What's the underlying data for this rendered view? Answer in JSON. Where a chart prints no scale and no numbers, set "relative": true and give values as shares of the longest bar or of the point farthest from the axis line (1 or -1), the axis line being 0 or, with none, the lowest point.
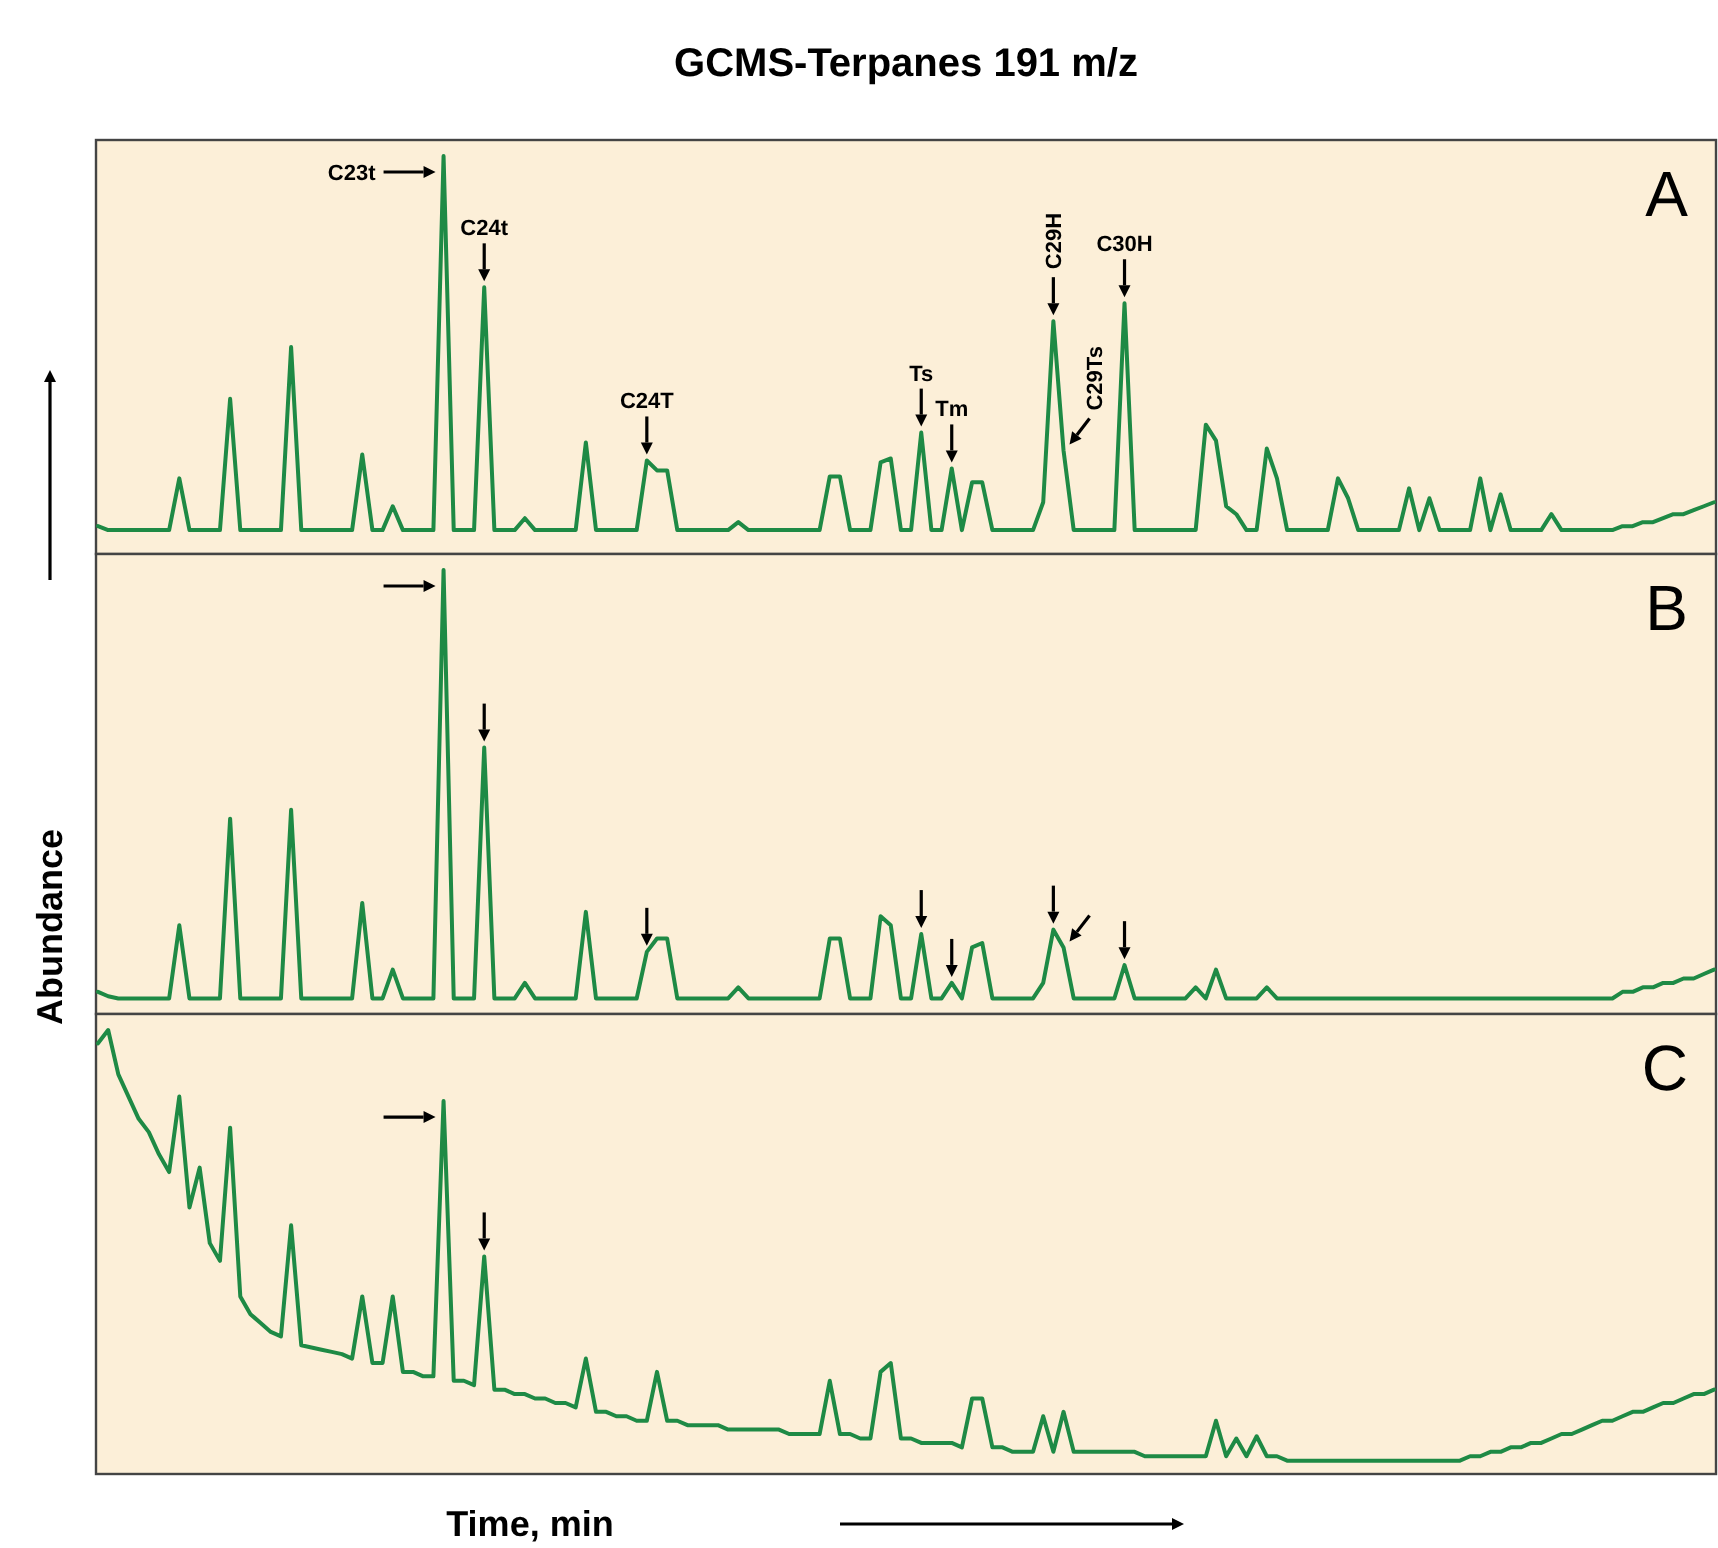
{
  "chart_data": [
    {
      "type": "line",
      "title": "GCMS-Terpanes 191 m/z",
      "relative": true,
      "categories": [
        null,
        null,
        null,
        null,
        null,
        null,
        null,
        null,
        null,
        null,
        null,
        null,
        null,
        null,
        null,
        null,
        null,
        null,
        null,
        null,
        null,
        null,
        null,
        null,
        null,
        null,
        null,
        null,
        null,
        null,
        null,
        null,
        null,
        null,
        null,
        null,
        null,
        null,
        null,
        null,
        null,
        null,
        null,
        null,
        null,
        null,
        null,
        null,
        null,
        null,
        null,
        null,
        null,
        null,
        null,
        null,
        null,
        null,
        null,
        null,
        null,
        null,
        null,
        null,
        null,
        null,
        null,
        null,
        null,
        null,
        null,
        null,
        null,
        null,
        null,
        null,
        null,
        null,
        null,
        null,
        null,
        null,
        null,
        null,
        null,
        null,
        null,
        null,
        null,
        null,
        null,
        null,
        null,
        null,
        null,
        null,
        null,
        null,
        null,
        null,
        null,
        null,
        null,
        null,
        null,
        null,
        null,
        null,
        null,
        null,
        null,
        null,
        null,
        null,
        null,
        null,
        null,
        null,
        null,
        null,
        null,
        null,
        null,
        null,
        null,
        null,
        null,
        null,
        null,
        null,
        null,
        null,
        null,
        null,
        null,
        null,
        null,
        null,
        null,
        null,
        null,
        null,
        null,
        null,
        null,
        null,
        null,
        null,
        null,
        null,
        null,
        null,
        null,
        null,
        null,
        null,
        null,
        null,
        null,
        null
      ],
      "series": [
        {
          "color": "#1e8a45",
          "values": [
            0.07,
            0.06,
            0.06,
            0.06,
            0.06,
            0.06,
            0.06,
            0.06,
            0.19,
            0.06,
            0.06,
            0.06,
            0.06,
            0.39,
            0.06,
            0.06,
            0.06,
            0.06,
            0.06,
            0.52,
            0.06,
            0.06,
            0.06,
            0.06,
            0.06,
            0.06,
            0.25,
            0.06,
            0.06,
            0.12,
            0.06,
            0.06,
            0.06,
            0.06,
            1,
            0.06,
            0.06,
            0.06,
            0.67,
            0.06,
            0.06,
            0.06,
            0.09,
            0.06,
            0.06,
            0.06,
            0.06,
            0.06,
            0.28,
            0.06,
            0.06,
            0.06,
            0.06,
            0.06,
            0.235,
            0.21,
            0.21,
            0.06,
            0.06,
            0.06,
            0.06,
            0.06,
            0.06,
            0.08,
            0.06,
            0.06,
            0.06,
            0.06,
            0.06,
            0.06,
            0.06,
            0.06,
            0.195,
            0.195,
            0.06,
            0.06,
            0.06,
            0.23,
            0.24,
            0.06,
            0.06,
            0.305,
            0.06,
            0.06,
            0.215,
            0.06,
            0.18,
            0.18,
            0.06,
            0.06,
            0.06,
            0.06,
            0.06,
            0.13,
            0.585,
            0.26,
            0.06,
            0.06,
            0.06,
            0.06,
            0.06,
            0.63,
            0.06,
            0.06,
            0.06,
            0.06,
            0.06,
            0.06,
            0.06,
            0.325,
            0.285,
            0.12,
            0.1,
            0.06,
            0.06,
            0.265,
            0.19,
            0.06,
            0.06,
            0.06,
            0.06,
            0.06,
            0.19,
            0.14,
            0.06,
            0.06,
            0.06,
            0.06,
            0.06,
            0.165,
            0.06,
            0.14,
            0.06,
            0.06,
            0.06,
            0.06,
            0.19,
            0.06,
            0.15,
            0.06,
            0.06,
            0.06,
            0.06,
            0.1,
            0.06,
            0.06,
            0.06,
            0.06,
            0.06,
            0.06,
            0.07,
            0.07,
            0.08,
            0.08,
            0.09,
            0.1,
            0.1,
            0.11,
            0.12,
            0.13
          ]
        }
      ],
      "annotations": [
        "A",
        "C23t",
        "C24t",
        "C24T",
        "Ts",
        "Tm",
        "C29H",
        "C29Ts",
        "C30H"
      ]
    },
    {
      "type": "line",
      "ylabel": "Abundance",
      "relative": true,
      "categories": [
        null,
        null,
        null,
        null,
        null,
        null,
        null,
        null,
        null,
        null,
        null,
        null,
        null,
        null,
        null,
        null,
        null,
        null,
        null,
        null,
        null,
        null,
        null,
        null,
        null,
        null,
        null,
        null,
        null,
        null,
        null,
        null,
        null,
        null,
        null,
        null,
        null,
        null,
        null,
        null,
        null,
        null,
        null,
        null,
        null,
        null,
        null,
        null,
        null,
        null,
        null,
        null,
        null,
        null,
        null,
        null,
        null,
        null,
        null,
        null,
        null,
        null,
        null,
        null,
        null,
        null,
        null,
        null,
        null,
        null,
        null,
        null,
        null,
        null,
        null,
        null,
        null,
        null,
        null,
        null,
        null,
        null,
        null,
        null,
        null,
        null,
        null,
        null,
        null,
        null,
        null,
        null,
        null,
        null,
        null,
        null,
        null,
        null,
        null,
        null,
        null,
        null,
        null,
        null,
        null,
        null,
        null,
        null,
        null,
        null,
        null,
        null,
        null,
        null,
        null,
        null,
        null,
        null,
        null,
        null,
        null,
        null,
        null,
        null,
        null,
        null,
        null,
        null,
        null,
        null,
        null,
        null,
        null,
        null,
        null,
        null,
        null,
        null,
        null,
        null,
        null,
        null,
        null,
        null,
        null,
        null,
        null,
        null,
        null,
        null,
        null,
        null,
        null,
        null,
        null,
        null,
        null,
        null,
        null,
        null
      ],
      "series": [
        {
          "color": "#1e8a45",
          "values": [
            0.05,
            0.04,
            0.035,
            0.035,
            0.035,
            0.035,
            0.035,
            0.035,
            0.2,
            0.035,
            0.035,
            0.035,
            0.035,
            0.44,
            0.035,
            0.035,
            0.035,
            0.035,
            0.035,
            0.46,
            0.035,
            0.035,
            0.035,
            0.035,
            0.035,
            0.035,
            0.25,
            0.035,
            0.035,
            0.1,
            0.035,
            0.035,
            0.035,
            0.035,
            1,
            0.035,
            0.035,
            0.035,
            0.6,
            0.035,
            0.035,
            0.035,
            0.07,
            0.035,
            0.035,
            0.035,
            0.035,
            0.035,
            0.23,
            0.035,
            0.035,
            0.035,
            0.035,
            0.035,
            0.14,
            0.17,
            0.17,
            0.035,
            0.035,
            0.035,
            0.035,
            0.035,
            0.035,
            0.06,
            0.035,
            0.035,
            0.035,
            0.035,
            0.035,
            0.035,
            0.035,
            0.035,
            0.17,
            0.17,
            0.035,
            0.035,
            0.035,
            0.22,
            0.2,
            0.035,
            0.035,
            0.18,
            0.035,
            0.035,
            0.07,
            0.035,
            0.15,
            0.16,
            0.035,
            0.035,
            0.035,
            0.035,
            0.035,
            0.07,
            0.19,
            0.15,
            0.035,
            0.035,
            0.035,
            0.035,
            0.035,
            0.11,
            0.035,
            0.035,
            0.035,
            0.035,
            0.035,
            0.035,
            0.06,
            0.035,
            0.1,
            0.035,
            0.035,
            0.035,
            0.035,
            0.06,
            0.035,
            0.035,
            0.035,
            0.035,
            0.035,
            0.035,
            0.035,
            0.035,
            0.035,
            0.035,
            0.035,
            0.035,
            0.035,
            0.035,
            0.035,
            0.035,
            0.035,
            0.035,
            0.035,
            0.035,
            0.035,
            0.035,
            0.035,
            0.035,
            0.035,
            0.035,
            0.035,
            0.035,
            0.035,
            0.035,
            0.035,
            0.035,
            0.035,
            0.035,
            0.05,
            0.05,
            0.06,
            0.06,
            0.07,
            0.07,
            0.08,
            0.08,
            0.09,
            0.1
          ]
        }
      ],
      "annotations": [
        "B"
      ]
    },
    {
      "type": "line",
      "xlabel": "Time, min",
      "relative": true,
      "categories": [
        null,
        null,
        null,
        null,
        null,
        null,
        null,
        null,
        null,
        null,
        null,
        null,
        null,
        null,
        null,
        null,
        null,
        null,
        null,
        null,
        null,
        null,
        null,
        null,
        null,
        null,
        null,
        null,
        null,
        null,
        null,
        null,
        null,
        null,
        null,
        null,
        null,
        null,
        null,
        null,
        null,
        null,
        null,
        null,
        null,
        null,
        null,
        null,
        null,
        null,
        null,
        null,
        null,
        null,
        null,
        null,
        null,
        null,
        null,
        null,
        null,
        null,
        null,
        null,
        null,
        null,
        null,
        null,
        null,
        null,
        null,
        null,
        null,
        null,
        null,
        null,
        null,
        null,
        null,
        null,
        null,
        null,
        null,
        null,
        null,
        null,
        null,
        null,
        null,
        null,
        null,
        null,
        null,
        null,
        null,
        null,
        null,
        null,
        null,
        null,
        null,
        null,
        null,
        null,
        null,
        null,
        null,
        null,
        null,
        null,
        null,
        null,
        null,
        null,
        null,
        null,
        null,
        null,
        null,
        null,
        null,
        null,
        null,
        null,
        null,
        null,
        null,
        null,
        null,
        null,
        null,
        null,
        null,
        null,
        null,
        null,
        null,
        null,
        null,
        null,
        null,
        null,
        null,
        null,
        null,
        null,
        null,
        null,
        null,
        null,
        null,
        null,
        null,
        null,
        null,
        null,
        null,
        null,
        null,
        null
      ],
      "series": [
        {
          "color": "#1e8a45",
          "values": [
            0.97,
            1,
            0.9,
            0.85,
            0.8,
            0.77,
            0.72,
            0.68,
            0.85,
            0.6,
            0.69,
            0.52,
            0.48,
            0.78,
            0.4,
            0.36,
            0.34,
            0.32,
            0.31,
            0.56,
            0.29,
            0.285,
            0.28,
            0.275,
            0.27,
            0.26,
            0.4,
            0.25,
            0.25,
            0.4,
            0.23,
            0.23,
            0.22,
            0.22,
            0.84,
            0.21,
            0.21,
            0.2,
            0.49,
            0.19,
            0.19,
            0.18,
            0.18,
            0.17,
            0.17,
            0.16,
            0.16,
            0.15,
            0.26,
            0.14,
            0.14,
            0.13,
            0.13,
            0.12,
            0.12,
            0.23,
            0.12,
            0.12,
            0.11,
            0.11,
            0.11,
            0.11,
            0.1,
            0.1,
            0.1,
            0.1,
            0.1,
            0.1,
            0.09,
            0.09,
            0.09,
            0.09,
            0.21,
            0.09,
            0.09,
            0.08,
            0.08,
            0.23,
            0.25,
            0.08,
            0.08,
            0.07,
            0.07,
            0.07,
            0.07,
            0.06,
            0.17,
            0.17,
            0.06,
            0.06,
            0.05,
            0.05,
            0.05,
            0.13,
            0.05,
            0.14,
            0.05,
            0.05,
            0.05,
            0.05,
            0.05,
            0.05,
            0.05,
            0.04,
            0.04,
            0.04,
            0.04,
            0.04,
            0.04,
            0.04,
            0.12,
            0.04,
            0.08,
            0.04,
            0.085,
            0.04,
            0.04,
            0.03,
            0.03,
            0.03,
            0.03,
            0.03,
            0.03,
            0.03,
            0.03,
            0.03,
            0.03,
            0.03,
            0.03,
            0.03,
            0.03,
            0.03,
            0.03,
            0.03,
            0.03,
            0.04,
            0.04,
            0.05,
            0.05,
            0.06,
            0.06,
            0.07,
            0.07,
            0.08,
            0.09,
            0.09,
            0.1,
            0.11,
            0.12,
            0.12,
            0.13,
            0.14,
            0.14,
            0.15,
            0.16,
            0.16,
            0.17,
            0.18,
            0.18,
            0.19
          ]
        }
      ],
      "annotations": [
        "C"
      ]
    }
  ]
}
